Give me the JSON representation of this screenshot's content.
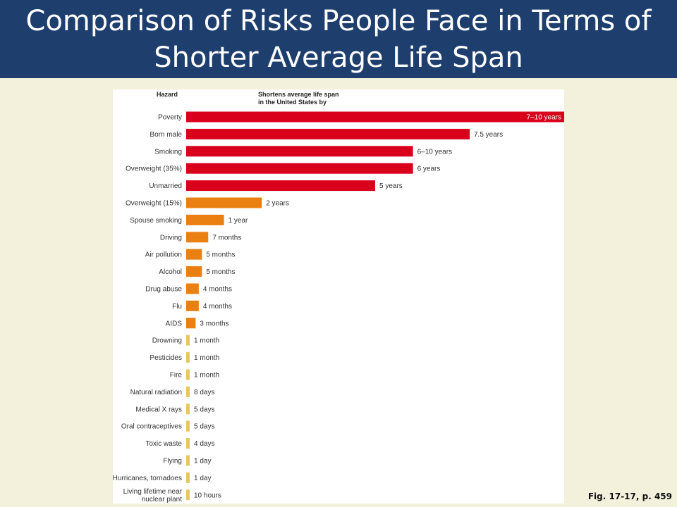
{
  "title": "Comparison of Risks People Face in Terms of Shorter Average Life Span",
  "caption": "Fig. 17-17, p. 459",
  "chart_data": {
    "type": "bar",
    "orientation": "horizontal",
    "column_headers": {
      "category": "Hazard",
      "value_line1": "Shortens average life span",
      "value_line2": "in the United States by"
    },
    "unit": "years",
    "xlim": [
      0,
      10
    ],
    "grid": false,
    "colors": {
      "high": "#d9001b",
      "medium": "#eb8012",
      "low": "#e8c85c"
    },
    "rows": [
      {
        "label": "Poverty",
        "value": 10,
        "value_label": "7–10 years",
        "tier": "high",
        "label_inside": true
      },
      {
        "label": "Born male",
        "value": 7.5,
        "value_label": "7.5 years",
        "tier": "high"
      },
      {
        "label": "Smoking",
        "value": 6,
        "value_label": "6–10 years",
        "tier": "high"
      },
      {
        "label": "Overweight (35%)",
        "value": 6,
        "value_label": "6 years",
        "tier": "high"
      },
      {
        "label": "Unmarried",
        "value": 5,
        "value_label": "5 years",
        "tier": "high"
      },
      {
        "label": "Overweight (15%)",
        "value": 2,
        "value_label": "2 years",
        "tier": "medium"
      },
      {
        "label": "Spouse smoking",
        "value": 1,
        "value_label": "1 year",
        "tier": "medium"
      },
      {
        "label": "Driving",
        "value": 0.583,
        "value_label": "7 months",
        "tier": "medium"
      },
      {
        "label": "Air pollution",
        "value": 0.417,
        "value_label": "5 months",
        "tier": "medium"
      },
      {
        "label": "Alcohol",
        "value": 0.417,
        "value_label": "5 months",
        "tier": "medium"
      },
      {
        "label": "Drug abuse",
        "value": 0.333,
        "value_label": "4 months",
        "tier": "medium"
      },
      {
        "label": "Flu",
        "value": 0.333,
        "value_label": "4 months",
        "tier": "medium"
      },
      {
        "label": "AIDS",
        "value": 0.25,
        "value_label": "3 months",
        "tier": "medium"
      },
      {
        "label": "Drowning",
        "value": 0.083,
        "value_label": "1 month",
        "tier": "low"
      },
      {
        "label": "Pesticides",
        "value": 0.083,
        "value_label": "1 month",
        "tier": "low"
      },
      {
        "label": "Fire",
        "value": 0.083,
        "value_label": "1 month",
        "tier": "low"
      },
      {
        "label": "Natural radiation",
        "value": 0.022,
        "value_label": "8 days",
        "tier": "low"
      },
      {
        "label": "Medical X rays",
        "value": 0.014,
        "value_label": "5 days",
        "tier": "low"
      },
      {
        "label": "Oral contraceptives",
        "value": 0.014,
        "value_label": "5 days",
        "tier": "low"
      },
      {
        "label": "Toxic waste",
        "value": 0.011,
        "value_label": "4 days",
        "tier": "low"
      },
      {
        "label": "Flying",
        "value": 0.003,
        "value_label": "1 day",
        "tier": "low"
      },
      {
        "label": "Hurricanes, tornadoes",
        "value": 0.003,
        "value_label": "1 day",
        "tier": "low"
      },
      {
        "label": "Living lifetime near nuclear plant",
        "label_lines": [
          "Living lifetime near",
          "nuclear plant"
        ],
        "value": 0.001,
        "value_label": "10 hours",
        "tier": "low"
      }
    ]
  }
}
